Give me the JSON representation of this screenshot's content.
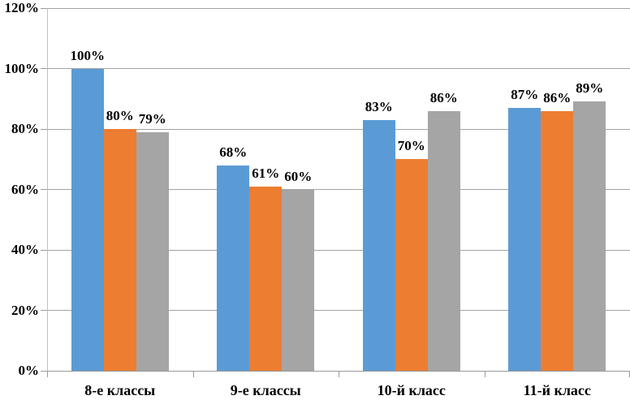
{
  "chart_data": {
    "type": "bar",
    "title": "",
    "xlabel": "",
    "ylabel": "",
    "categories": [
      "8-е классы",
      "9-е классы",
      "10-й класс",
      "11-й класс"
    ],
    "series": [
      {
        "name": "series-1",
        "color": "#5B9BD5",
        "values": [
          100,
          68,
          83,
          87
        ],
        "labels": [
          "100%",
          "68%",
          "83%",
          "87%"
        ]
      },
      {
        "name": "series-2",
        "color": "#ED7D31",
        "values": [
          80,
          61,
          70,
          86
        ],
        "labels": [
          "80%",
          "61%",
          "70%",
          "86%"
        ]
      },
      {
        "name": "series-3",
        "color": "#A5A5A5",
        "values": [
          79,
          60,
          86,
          89
        ],
        "labels": [
          "79%",
          "60%",
          "86%",
          "89%"
        ]
      }
    ],
    "y_axis": {
      "min": 0,
      "max": 120,
      "step": 20,
      "tick_labels": [
        "0%",
        "20%",
        "40%",
        "60%",
        "80%",
        "100%",
        "120%"
      ]
    },
    "grid": true,
    "legend": false,
    "data_labels": true,
    "colors": {
      "gridline": "#a3a3a3",
      "axis": "#9a9a9a",
      "background": "#ffffff",
      "text": "#000000"
    }
  }
}
